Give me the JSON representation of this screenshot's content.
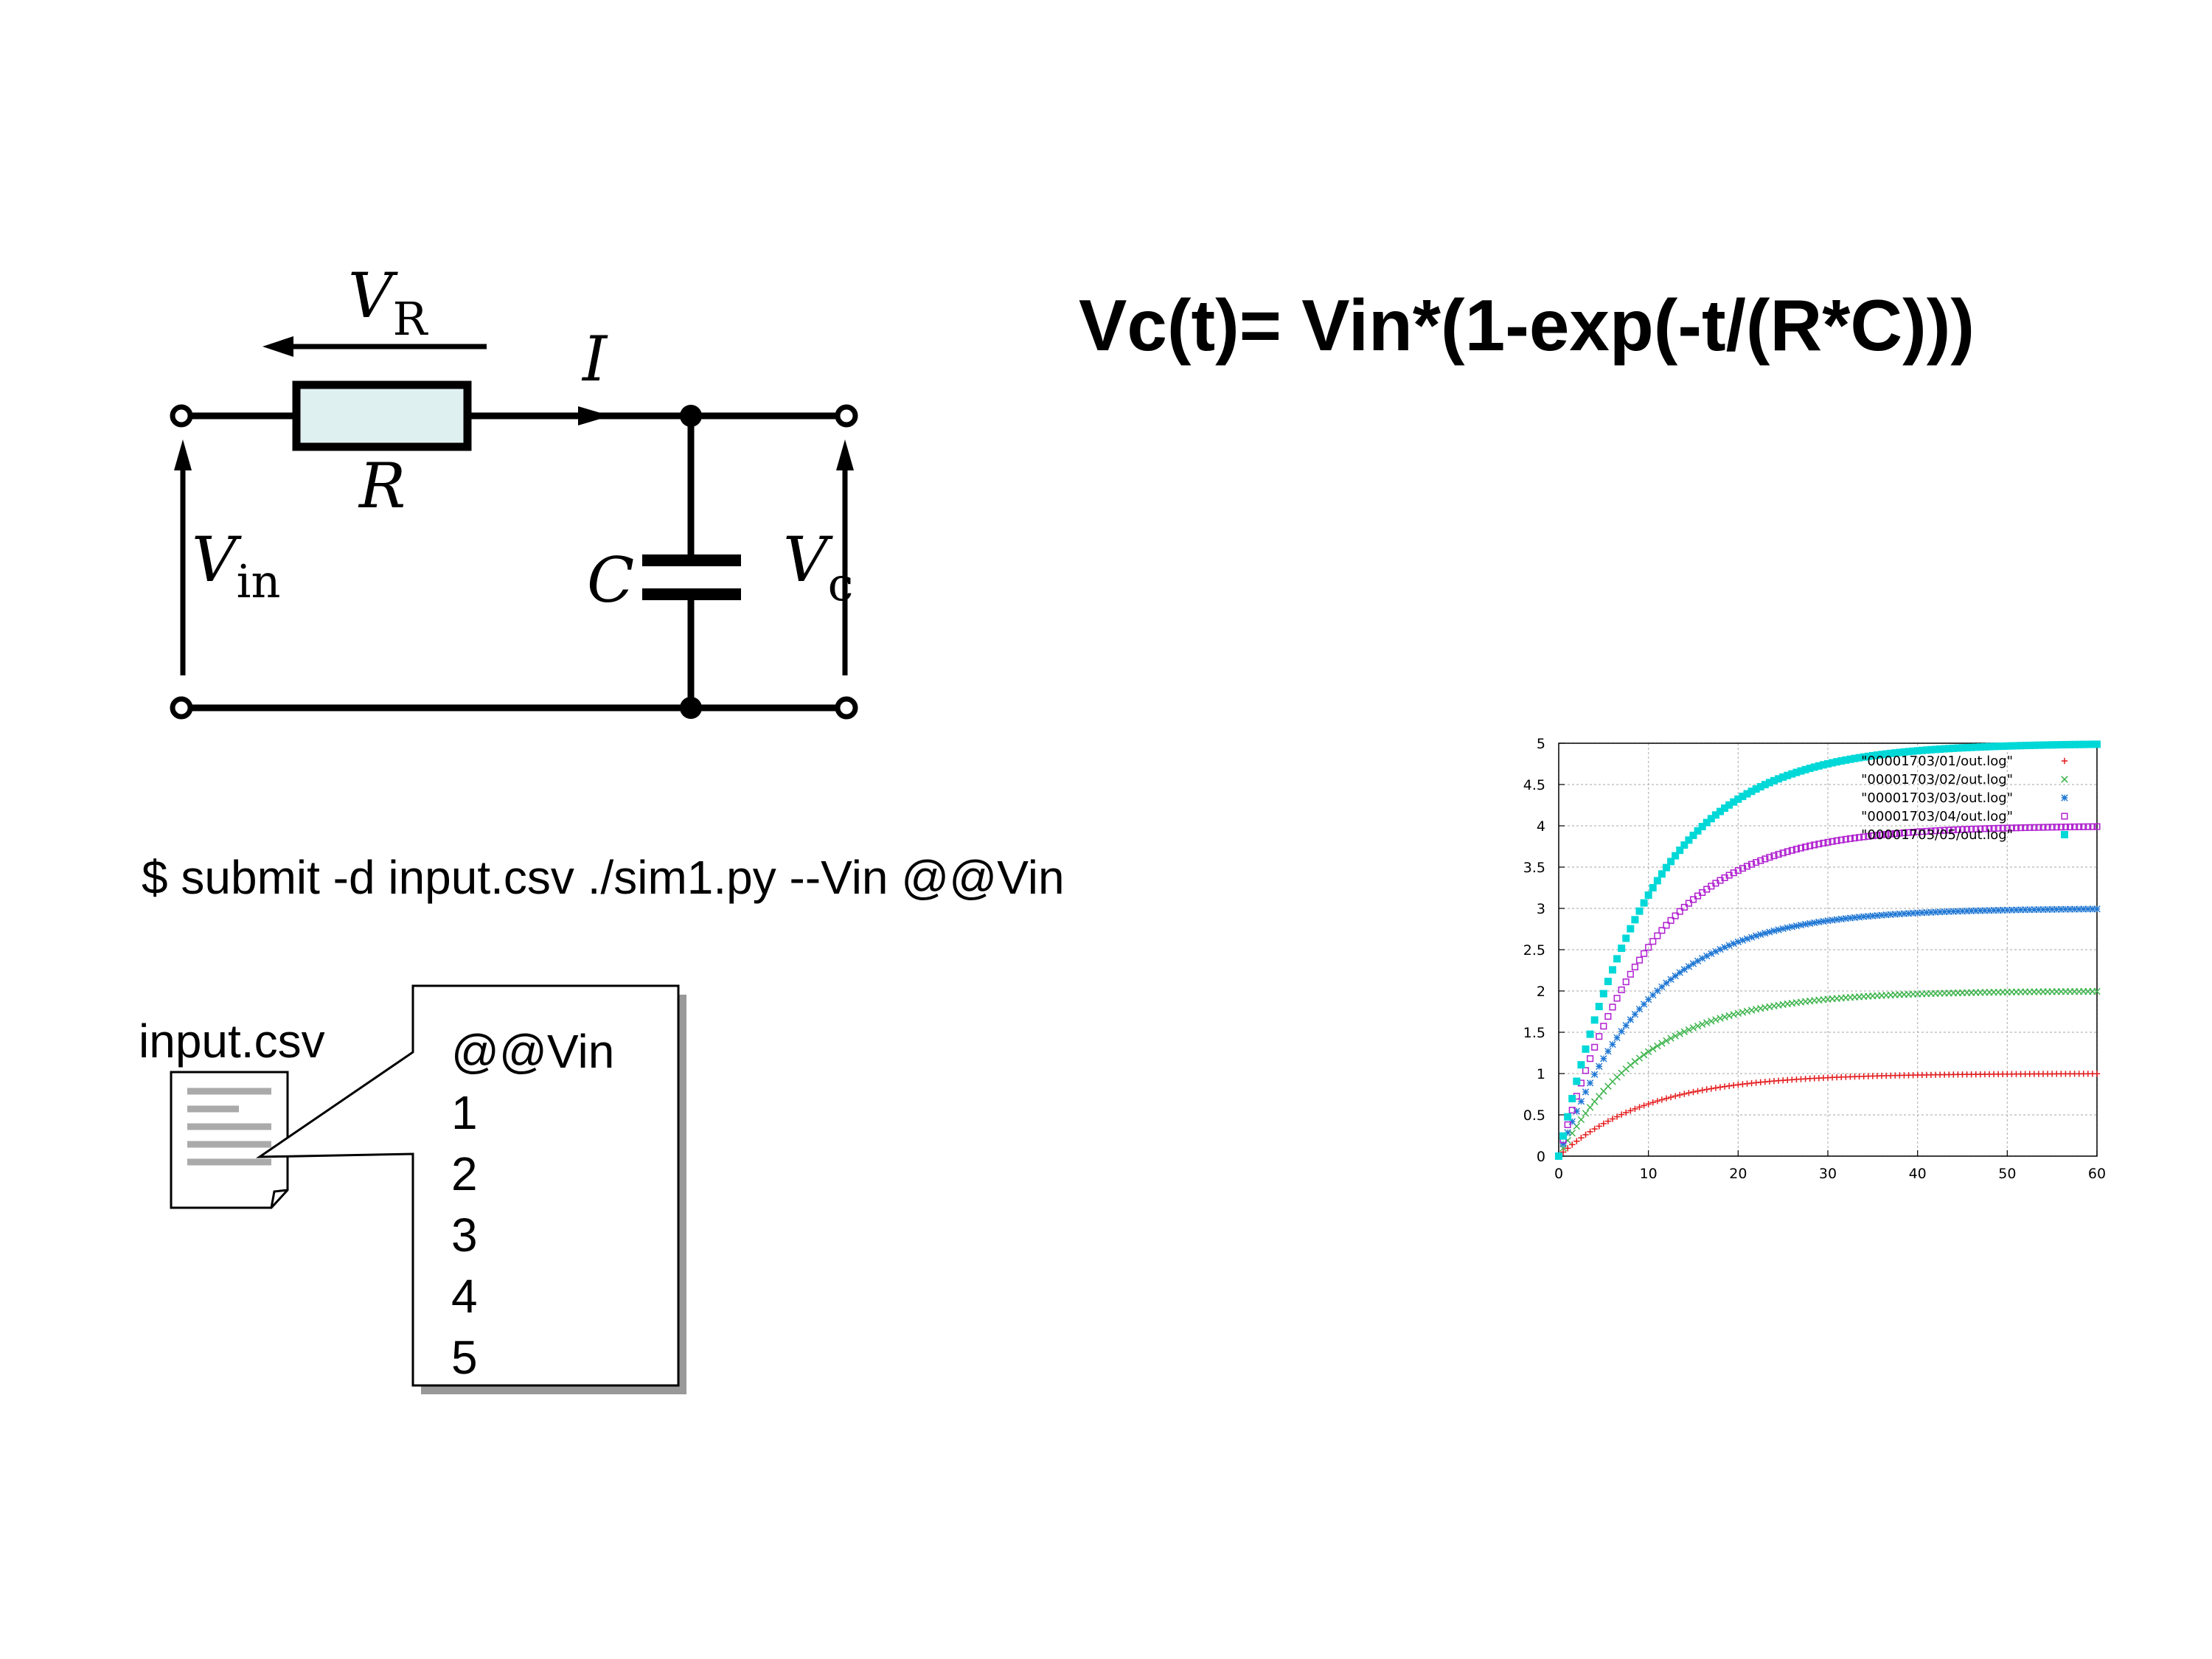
{
  "circuit": {
    "vr_label": "V",
    "vr_sub": "R",
    "current_label": "I",
    "resistor_label": "R",
    "capacitor_label": "C",
    "vin_label": "V",
    "vin_sub": "in",
    "vc_label": "V",
    "vc_sub": "c",
    "colors": {
      "resistor_fill": "#dff0f0",
      "wire": "#000000"
    }
  },
  "formula": "Vc(t)= Vin*(1-exp(-t/(R*C)))",
  "command": "$ submit -d input.csv ./sim1.py --Vin @@Vin",
  "input_file": {
    "name": "input.csv",
    "icon": "document-icon",
    "lines": [
      "@@Vin",
      "1",
      "2",
      "3",
      "4",
      "5"
    ]
  },
  "chart_data": {
    "type": "scatter",
    "xlim": [
      0,
      60
    ],
    "ylim": [
      0,
      5
    ],
    "x_ticks": [
      "0",
      "10",
      "20",
      "30",
      "40",
      "50",
      "60"
    ],
    "y_ticks": [
      "0",
      "0.5",
      "1",
      "1.5",
      "2",
      "2.5",
      "3",
      "3.5",
      "4",
      "4.5",
      "5"
    ],
    "grid": true,
    "legend_position": "top-right",
    "x_sample_step": 0.5,
    "series": [
      {
        "name": "\"00001703/01/out.log\"",
        "asymptote": 1,
        "tau": 10,
        "color": "#e41a1c",
        "marker": "+"
      },
      {
        "name": "\"00001703/02/out.log\"",
        "asymptote": 2,
        "tau": 10,
        "color": "#3cb44b",
        "marker": "x"
      },
      {
        "name": "\"00001703/03/out.log\"",
        "asymptote": 3,
        "tau": 10,
        "color": "#1f77d4",
        "marker": "*"
      },
      {
        "name": "\"00001703/04/out.log\"",
        "asymptote": 4,
        "tau": 10,
        "color": "#b020d0",
        "marker": "open-square"
      },
      {
        "name": "\"00001703/05/out.log\"",
        "asymptote": 5,
        "tau": 10,
        "color": "#00d8d8",
        "marker": "filled-square"
      }
    ]
  }
}
